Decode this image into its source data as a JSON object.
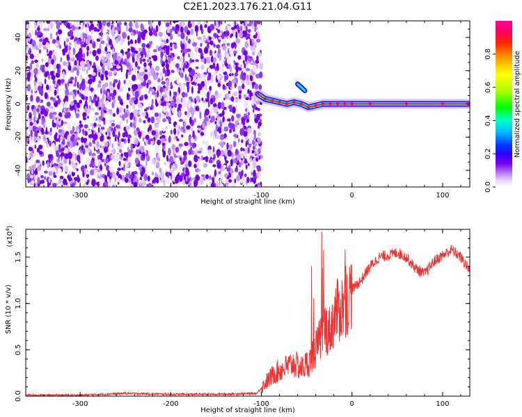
{
  "title": "C2E1.2023.176.21.04.G11",
  "colors": {
    "snr_line": "#ee3333",
    "noise_violet": "#7a00ee",
    "colorbar": [
      "#e6d6fa",
      "#b070f5",
      "#7a00ee",
      "#2a00ff",
      "#0044ff",
      "#00bbff",
      "#00ffcc",
      "#00ff00",
      "#b0ff00",
      "#ffff00",
      "#ff9900",
      "#ff2200",
      "#ff0066",
      "#ff0099"
    ]
  },
  "chart_data": [
    {
      "type": "heatmap",
      "title": "",
      "xlabel": "Height of straight line (km)",
      "ylabel": "Frequency (Hz)",
      "xlim": [
        -360,
        130
      ],
      "ylim": [
        -50,
        50
      ],
      "x_ticks": [
        {
          "value": -300,
          "label": "-300"
        },
        {
          "value": -200,
          "label": "-200"
        },
        {
          "value": -100,
          "label": "-100"
        },
        {
          "value": 0,
          "label": "0"
        },
        {
          "value": 100,
          "label": "100"
        }
      ],
      "y_ticks": [
        {
          "value": -40,
          "label": "-40"
        },
        {
          "value": -20,
          "label": "-20"
        },
        {
          "value": 0,
          "label": "0"
        },
        {
          "value": 20,
          "label": "20"
        },
        {
          "value": 40,
          "label": "40"
        }
      ],
      "noise_region_x": [
        -360,
        -100
      ],
      "signal_track": [
        {
          "x": -104,
          "y": 6
        },
        {
          "x": -96,
          "y": 3
        },
        {
          "x": -88,
          "y": 2
        },
        {
          "x": -80,
          "y": 1
        },
        {
          "x": -72,
          "y": 0
        },
        {
          "x": -64,
          "y": 1
        },
        {
          "x": -56,
          "y": 0
        },
        {
          "x": -48,
          "y": -2
        },
        {
          "x": -40,
          "y": -1
        },
        {
          "x": -32,
          "y": 0
        },
        {
          "x": -24,
          "y": 0
        },
        {
          "x": -16,
          "y": 0
        },
        {
          "x": -8,
          "y": 0
        },
        {
          "x": 0,
          "y": 0
        },
        {
          "x": 20,
          "y": 0
        },
        {
          "x": 60,
          "y": 0
        },
        {
          "x": 100,
          "y": 0
        },
        {
          "x": 128,
          "y": 0
        }
      ],
      "side_branch": [
        {
          "x": -60,
          "y": 12
        },
        {
          "x": -56,
          "y": 10
        },
        {
          "x": -52,
          "y": 8
        }
      ],
      "colorbar": {
        "label": "Normalized spectral amplitude",
        "range": [
          0.0,
          1.0
        ],
        "ticks": [
          {
            "value": 0.0,
            "label": "0.0"
          },
          {
            "value": 0.2,
            "label": "0.2"
          },
          {
            "value": 0.4,
            "label": "0.4"
          },
          {
            "value": 0.6,
            "label": "0.6"
          },
          {
            "value": 0.8,
            "label": "0.8"
          }
        ]
      }
    },
    {
      "type": "line",
      "title": "",
      "xlabel": "Height of straight line (km)",
      "ylabel": "SNR (10 * v/v)",
      "y_multiplier": "(x10",
      "y_multiplier_exp": "4",
      "y_multiplier_close": ")",
      "xlim": [
        -360,
        130
      ],
      "ylim": [
        0,
        1.8
      ],
      "x_ticks": [
        {
          "value": -300,
          "label": "-300"
        },
        {
          "value": -200,
          "label": "-200"
        },
        {
          "value": -100,
          "label": "-100"
        },
        {
          "value": 0,
          "label": "0"
        },
        {
          "value": 100,
          "label": "100"
        }
      ],
      "y_ticks": [
        {
          "value": 0.0,
          "label": "0.0"
        },
        {
          "value": 0.5,
          "label": "0.5"
        },
        {
          "value": 1.0,
          "label": "1.0"
        },
        {
          "value": 1.5,
          "label": "1.5"
        }
      ],
      "series": [
        {
          "x": [
            -360,
            -300,
            -250,
            -200,
            -150,
            -105,
            -95,
            -85,
            -75,
            -65,
            -55,
            -45,
            -38,
            -30,
            -25,
            -18,
            -12,
            -5,
            0,
            10,
            20,
            30,
            40,
            50,
            60,
            70,
            80,
            90,
            100,
            110,
            120,
            130
          ],
          "values": [
            0.01,
            0.01,
            0.03,
            0.02,
            0.02,
            0.03,
            0.15,
            0.25,
            0.3,
            0.35,
            0.3,
            0.4,
            0.55,
            0.75,
            0.7,
            0.9,
            0.95,
            1.05,
            1.15,
            1.25,
            1.4,
            1.5,
            1.52,
            1.55,
            1.5,
            1.38,
            1.32,
            1.45,
            1.52,
            1.58,
            1.5,
            1.35
          ]
        }
      ]
    }
  ]
}
